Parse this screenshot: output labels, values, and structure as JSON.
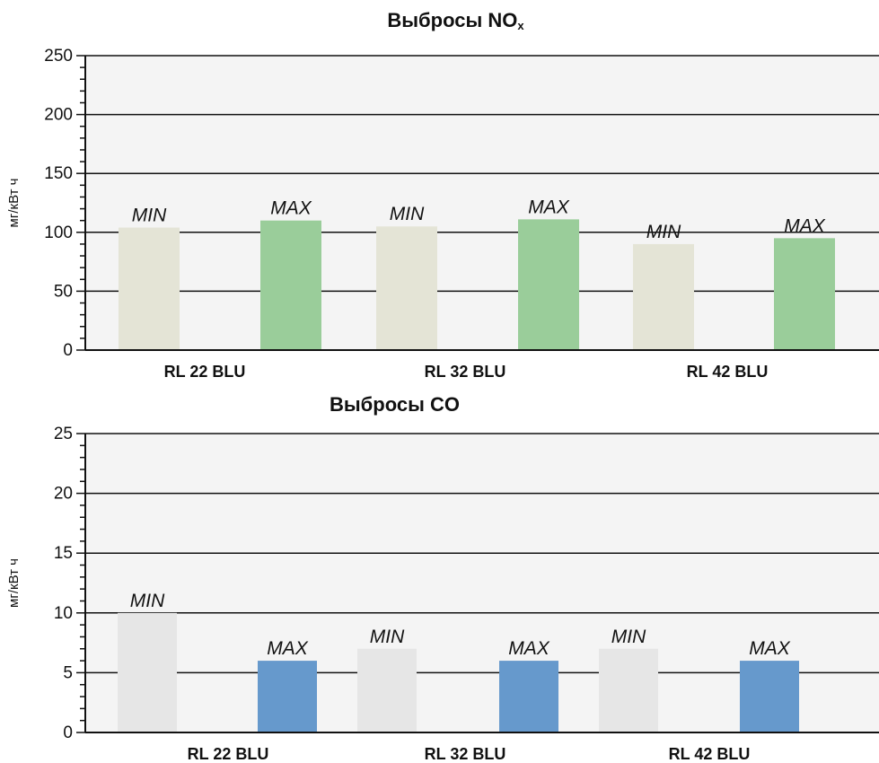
{
  "chart_data": [
    {
      "type": "bar",
      "title": "Выбросы NO",
      "title_sub": "x",
      "ylabel": "мг/кВт ч",
      "ylim": [
        0,
        250
      ],
      "yticks": [
        0,
        50,
        100,
        150,
        200,
        250
      ],
      "categories": [
        "RL 22 BLU",
        "RL 32 BLU",
        "RL 42 BLU"
      ],
      "series": [
        {
          "name": "MIN",
          "color": "#e4e4d6",
          "values": [
            104,
            105,
            90
          ]
        },
        {
          "name": "MAX",
          "color": "#9acd9a",
          "values": [
            110,
            111,
            95
          ]
        }
      ],
      "grid": true
    },
    {
      "type": "bar",
      "title": "Выбросы CO",
      "ylabel": "мг/кВт ч",
      "ylim": [
        0,
        25
      ],
      "yticks": [
        0,
        5,
        10,
        15,
        20,
        25
      ],
      "categories": [
        "RL 22 BLU",
        "RL 32 BLU",
        "RL 42 BLU"
      ],
      "series": [
        {
          "name": "MIN",
          "color": "#e6e6e6",
          "values": [
            10,
            7,
            7
          ]
        },
        {
          "name": "MAX",
          "color": "#6699cc",
          "values": [
            6,
            6,
            6
          ]
        }
      ],
      "grid": true
    }
  ]
}
